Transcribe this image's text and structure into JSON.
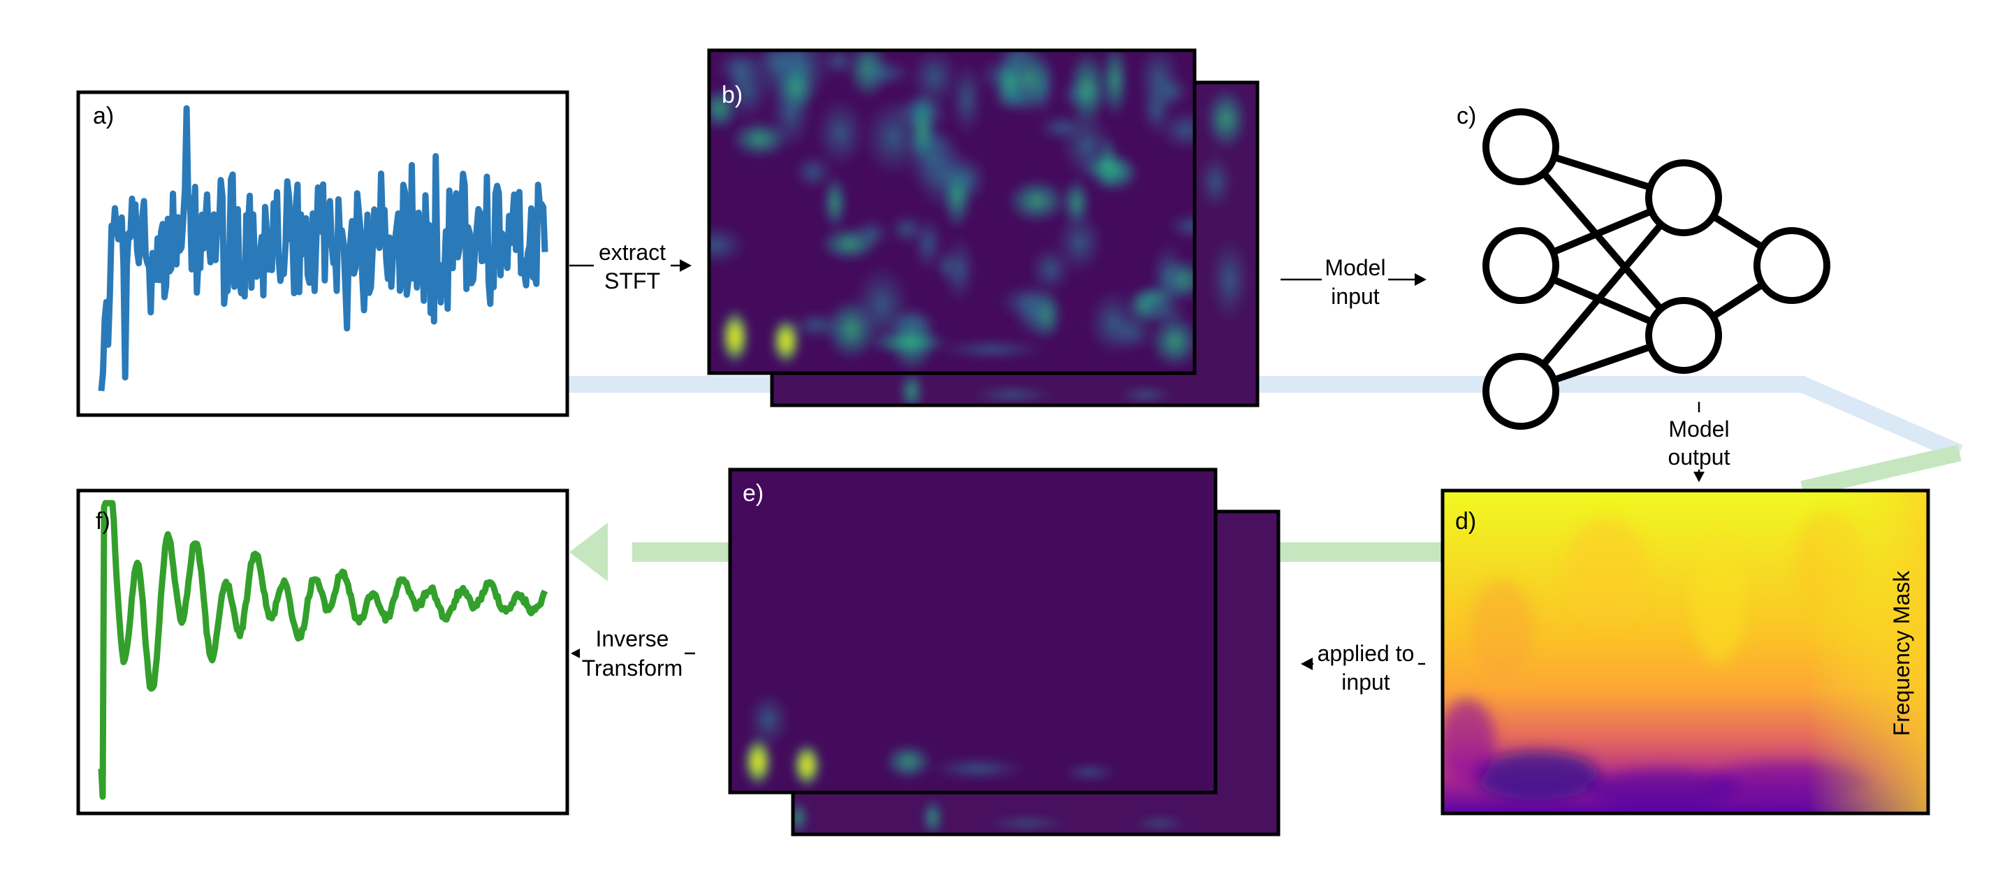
{
  "panels": {
    "a": {
      "letter": "a)",
      "description": "noisy input waveform",
      "color": "#2a7ab9"
    },
    "b": {
      "letter": "b)",
      "description": "input STFT spectrogram (viridis)"
    },
    "c": {
      "letter": "c)",
      "description": "neural network model"
    },
    "d": {
      "letter": "d)",
      "side_label": "Frequency Mask",
      "description": "predicted frequency mask (plasma)"
    },
    "e": {
      "letter": "e)",
      "description": "masked spectrogram (viridis)"
    },
    "f": {
      "letter": "f)",
      "description": "denoised output waveform",
      "color": "#33a02c"
    }
  },
  "captions": {
    "extract": [
      "extract",
      "STFT"
    ],
    "model_input": [
      "Model",
      "input"
    ],
    "model_output": [
      "Model",
      "output"
    ],
    "applied": [
      "applied to",
      "input"
    ],
    "inverse": [
      "Inverse",
      "Transform"
    ]
  },
  "colors": {
    "flow_blue": "#dbe8f6",
    "flow_green": "#c6e6c0",
    "viridis_dark": "#44085a",
    "plasma_yellow": "#f0f921"
  }
}
